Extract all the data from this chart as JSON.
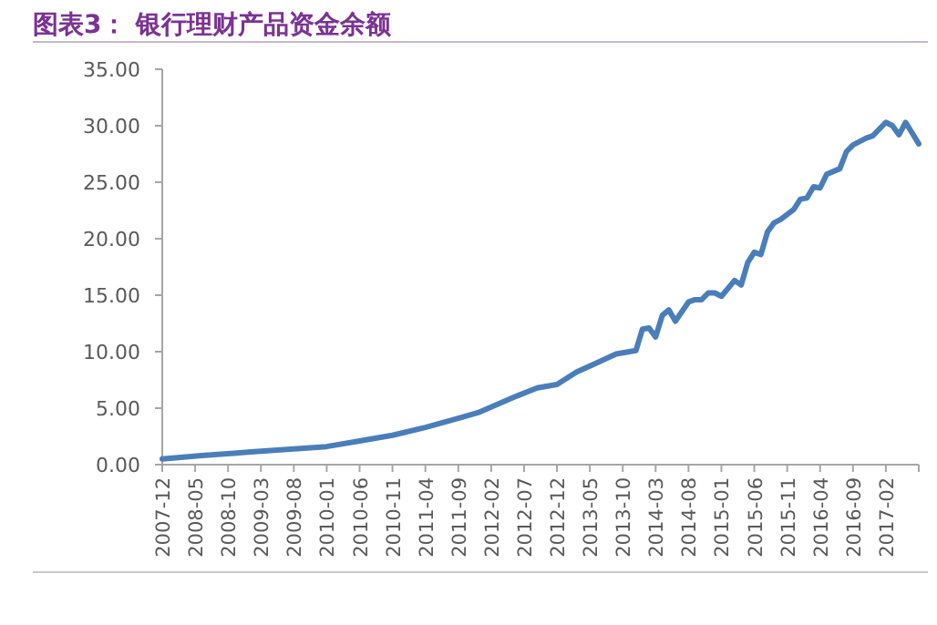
{
  "chart_data": {
    "type": "line",
    "title": "图表3： 银行理财产品资金余额",
    "x": [
      "2007-12",
      "2008-06",
      "2009-01",
      "2009-08",
      "2010-01",
      "2010-06",
      "2010-11",
      "2011-04",
      "2011-09",
      "2011-12",
      "2012-06",
      "2012-09",
      "2012-12",
      "2013-03",
      "2013-06",
      "2013-09",
      "2013-12",
      "2014-01",
      "2014-02",
      "2014-03",
      "2014-04",
      "2014-05",
      "2014-06",
      "2014-08",
      "2014-09",
      "2014-10",
      "2014-11",
      "2014-12",
      "2015-01",
      "2015-03",
      "2015-04",
      "2015-05",
      "2015-06",
      "2015-07",
      "2015-08",
      "2015-09",
      "2015-10",
      "2015-12",
      "2016-01",
      "2016-02",
      "2016-03",
      "2016-04",
      "2016-05",
      "2016-07",
      "2016-08",
      "2016-09",
      "2016-11",
      "2016-12",
      "2017-02",
      "2017-03",
      "2017-04",
      "2017-05",
      "2017-07"
    ],
    "values": [
      0.5,
      0.8,
      1.1,
      1.4,
      1.6,
      2.1,
      2.6,
      3.3,
      4.1,
      4.6,
      6.1,
      6.8,
      7.1,
      8.2,
      9.0,
      9.8,
      10.1,
      12.0,
      12.1,
      11.3,
      13.2,
      13.7,
      12.7,
      14.4,
      14.6,
      14.6,
      15.2,
      15.2,
      14.9,
      16.3,
      15.9,
      17.9,
      18.8,
      18.6,
      20.6,
      21.4,
      21.7,
      22.6,
      23.5,
      23.6,
      24.6,
      24.5,
      25.7,
      26.2,
      27.7,
      28.3,
      28.9,
      29.1,
      30.3,
      30.0,
      29.2,
      30.3,
      28.4
    ],
    "color": "#4a7ebb",
    "xlim": [
      "2007-12",
      "2017-07"
    ],
    "xticks": [
      "2007-12",
      "2008-05",
      "2008-10",
      "2009-03",
      "2009-08",
      "2010-01",
      "2010-06",
      "2010-11",
      "2011-04",
      "2011-09",
      "2012-02",
      "2012-07",
      "2012-12",
      "2013-05",
      "2013-10",
      "2014-03",
      "2014-08",
      "2015-01",
      "2015-06",
      "2015-11",
      "2016-04",
      "2016-09",
      "2017-02",
      {
        "value": "2017-07",
        "label": null
      }
    ],
    "ylim": [
      0,
      35
    ],
    "yticks": [
      {
        "value": 0,
        "label": "0.00"
      },
      {
        "value": 5,
        "label": "5.00"
      },
      {
        "value": 10,
        "label": "10.00"
      },
      {
        "value": 15,
        "label": "15.00"
      },
      {
        "value": 20,
        "label": "20.00"
      },
      {
        "value": 25,
        "label": "25.00"
      },
      {
        "value": 30,
        "label": "30.00"
      },
      {
        "value": 35,
        "label": "35.00"
      }
    ]
  }
}
